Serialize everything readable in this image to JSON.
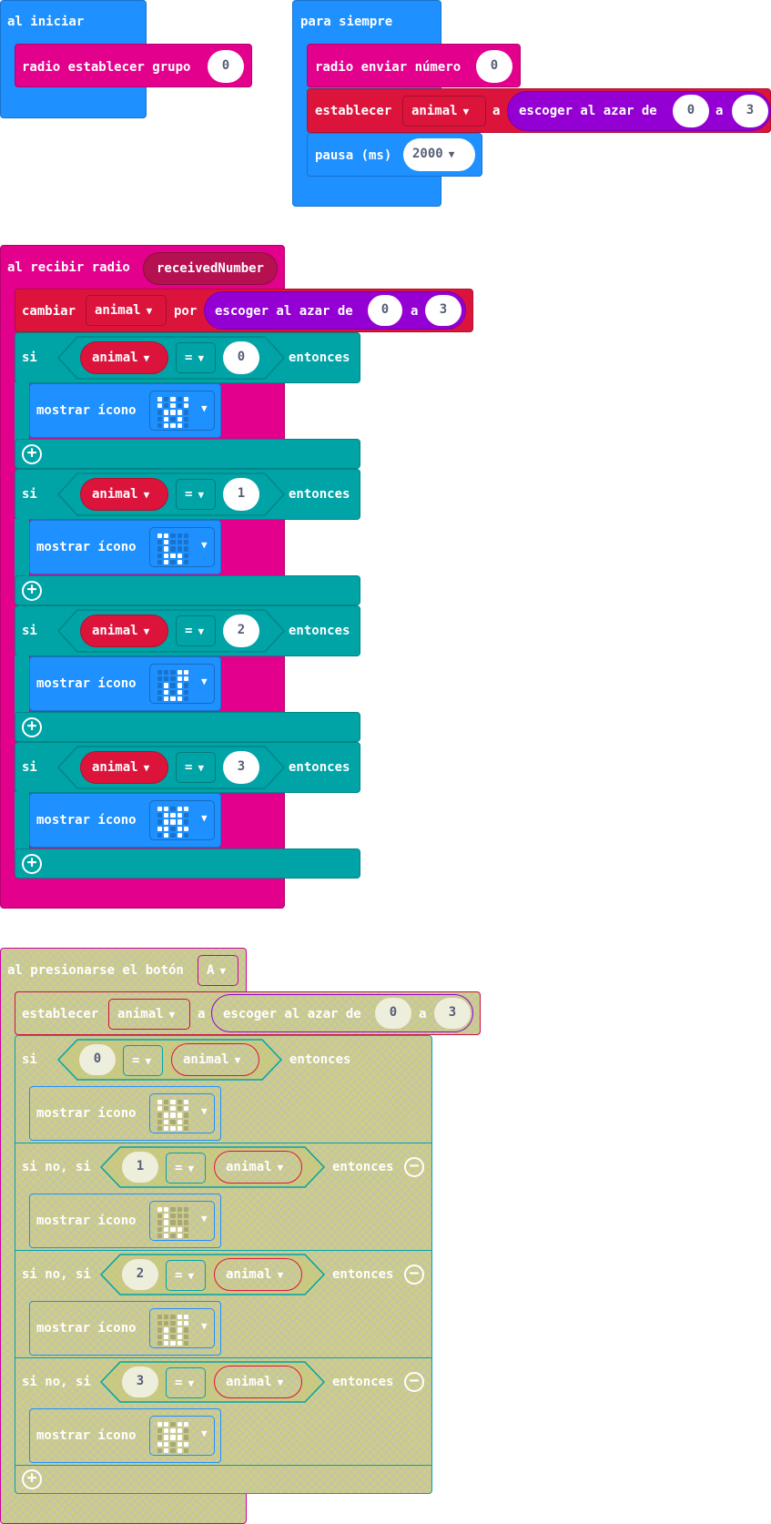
{
  "colors": {
    "basic_blue": "#1e90ff",
    "radio_pink": "#e3008c",
    "variables_red": "#dc143c",
    "math_purple": "#9400d3",
    "logic_teal": "#00a4a6",
    "disabled_bg": "#cfcf80"
  },
  "on_start": {
    "hat_label": "al iniciar",
    "set_group_label": "radio establecer grupo",
    "group_value": "0"
  },
  "forever": {
    "hat_label": "para siempre",
    "send_label": "radio enviar número",
    "send_value": "0",
    "set_label": "establecer",
    "var_name": "animal",
    "to_label": "a",
    "random_label": "escoger al azar de",
    "random_from": "0",
    "random_and": "a",
    "random_to": "3",
    "pause_label": "pausa (ms)",
    "pause_value": "2000"
  },
  "on_received": {
    "hat_label": "al recibir radio",
    "param": "receivedNumber",
    "change_label": "cambiar",
    "var_name": "animal",
    "by_label": "por",
    "random_label": "escoger al azar de",
    "random_from": "0",
    "random_and": "a",
    "random_to": "3",
    "if_blocks": [
      {
        "if_label": "si",
        "var": "animal",
        "op": "=",
        "value": "0",
        "then_label": "entonces",
        "show_label": "mostrar ícono",
        "icon": "rabbit-icon",
        "pixels": "10101,10101,01110,01010,01110"
      },
      {
        "if_label": "si",
        "var": "animal",
        "op": "=",
        "value": "1",
        "then_label": "entonces",
        "show_label": "mostrar ícono",
        "icon": "giraffe-icon",
        "pixels": "11000,01000,01000,01110,01010"
      },
      {
        "if_label": "si",
        "var": "animal",
        "op": "=",
        "value": "2",
        "then_label": "entonces",
        "show_label": "mostrar ícono",
        "icon": "snake-icon",
        "pixels": "00011,00011,01010,01010,01110"
      },
      {
        "if_label": "si",
        "var": "animal",
        "op": "=",
        "value": "3",
        "then_label": "entonces",
        "show_label": "mostrar ícono",
        "icon": "tortoise-icon",
        "pixels": "11011,01110,01110,11011,01010"
      }
    ]
  },
  "on_button": {
    "hat_label": "al presionarse el botón",
    "button": "A",
    "set_label": "establecer",
    "var_name": "animal",
    "to_label": "a",
    "random_label": "escoger al azar de",
    "random_from": "0",
    "random_and": "a",
    "random_to": "3",
    "branches": [
      {
        "if_label": "si",
        "value": "0",
        "op": "=",
        "var": "animal",
        "then_label": "entonces",
        "show_label": "mostrar ícono",
        "icon": "rabbit-icon",
        "pixels": "10101,10101,01110,01010,01110"
      },
      {
        "if_label": "si no, si",
        "value": "1",
        "op": "=",
        "var": "animal",
        "then_label": "entonces",
        "show_label": "mostrar ícono",
        "icon": "giraffe-icon",
        "pixels": "11000,01000,01000,01110,01010"
      },
      {
        "if_label": "si no, si",
        "value": "2",
        "op": "=",
        "var": "animal",
        "then_label": "entonces",
        "show_label": "mostrar ícono",
        "icon": "snake-icon",
        "pixels": "00011,00011,01010,01010,01110"
      },
      {
        "if_label": "si no, si",
        "value": "3",
        "op": "=",
        "var": "animal",
        "then_label": "entonces",
        "show_label": "mostrar ícono",
        "icon": "tortoise-icon",
        "pixels": "11011,01110,01110,11011,01010"
      }
    ]
  }
}
